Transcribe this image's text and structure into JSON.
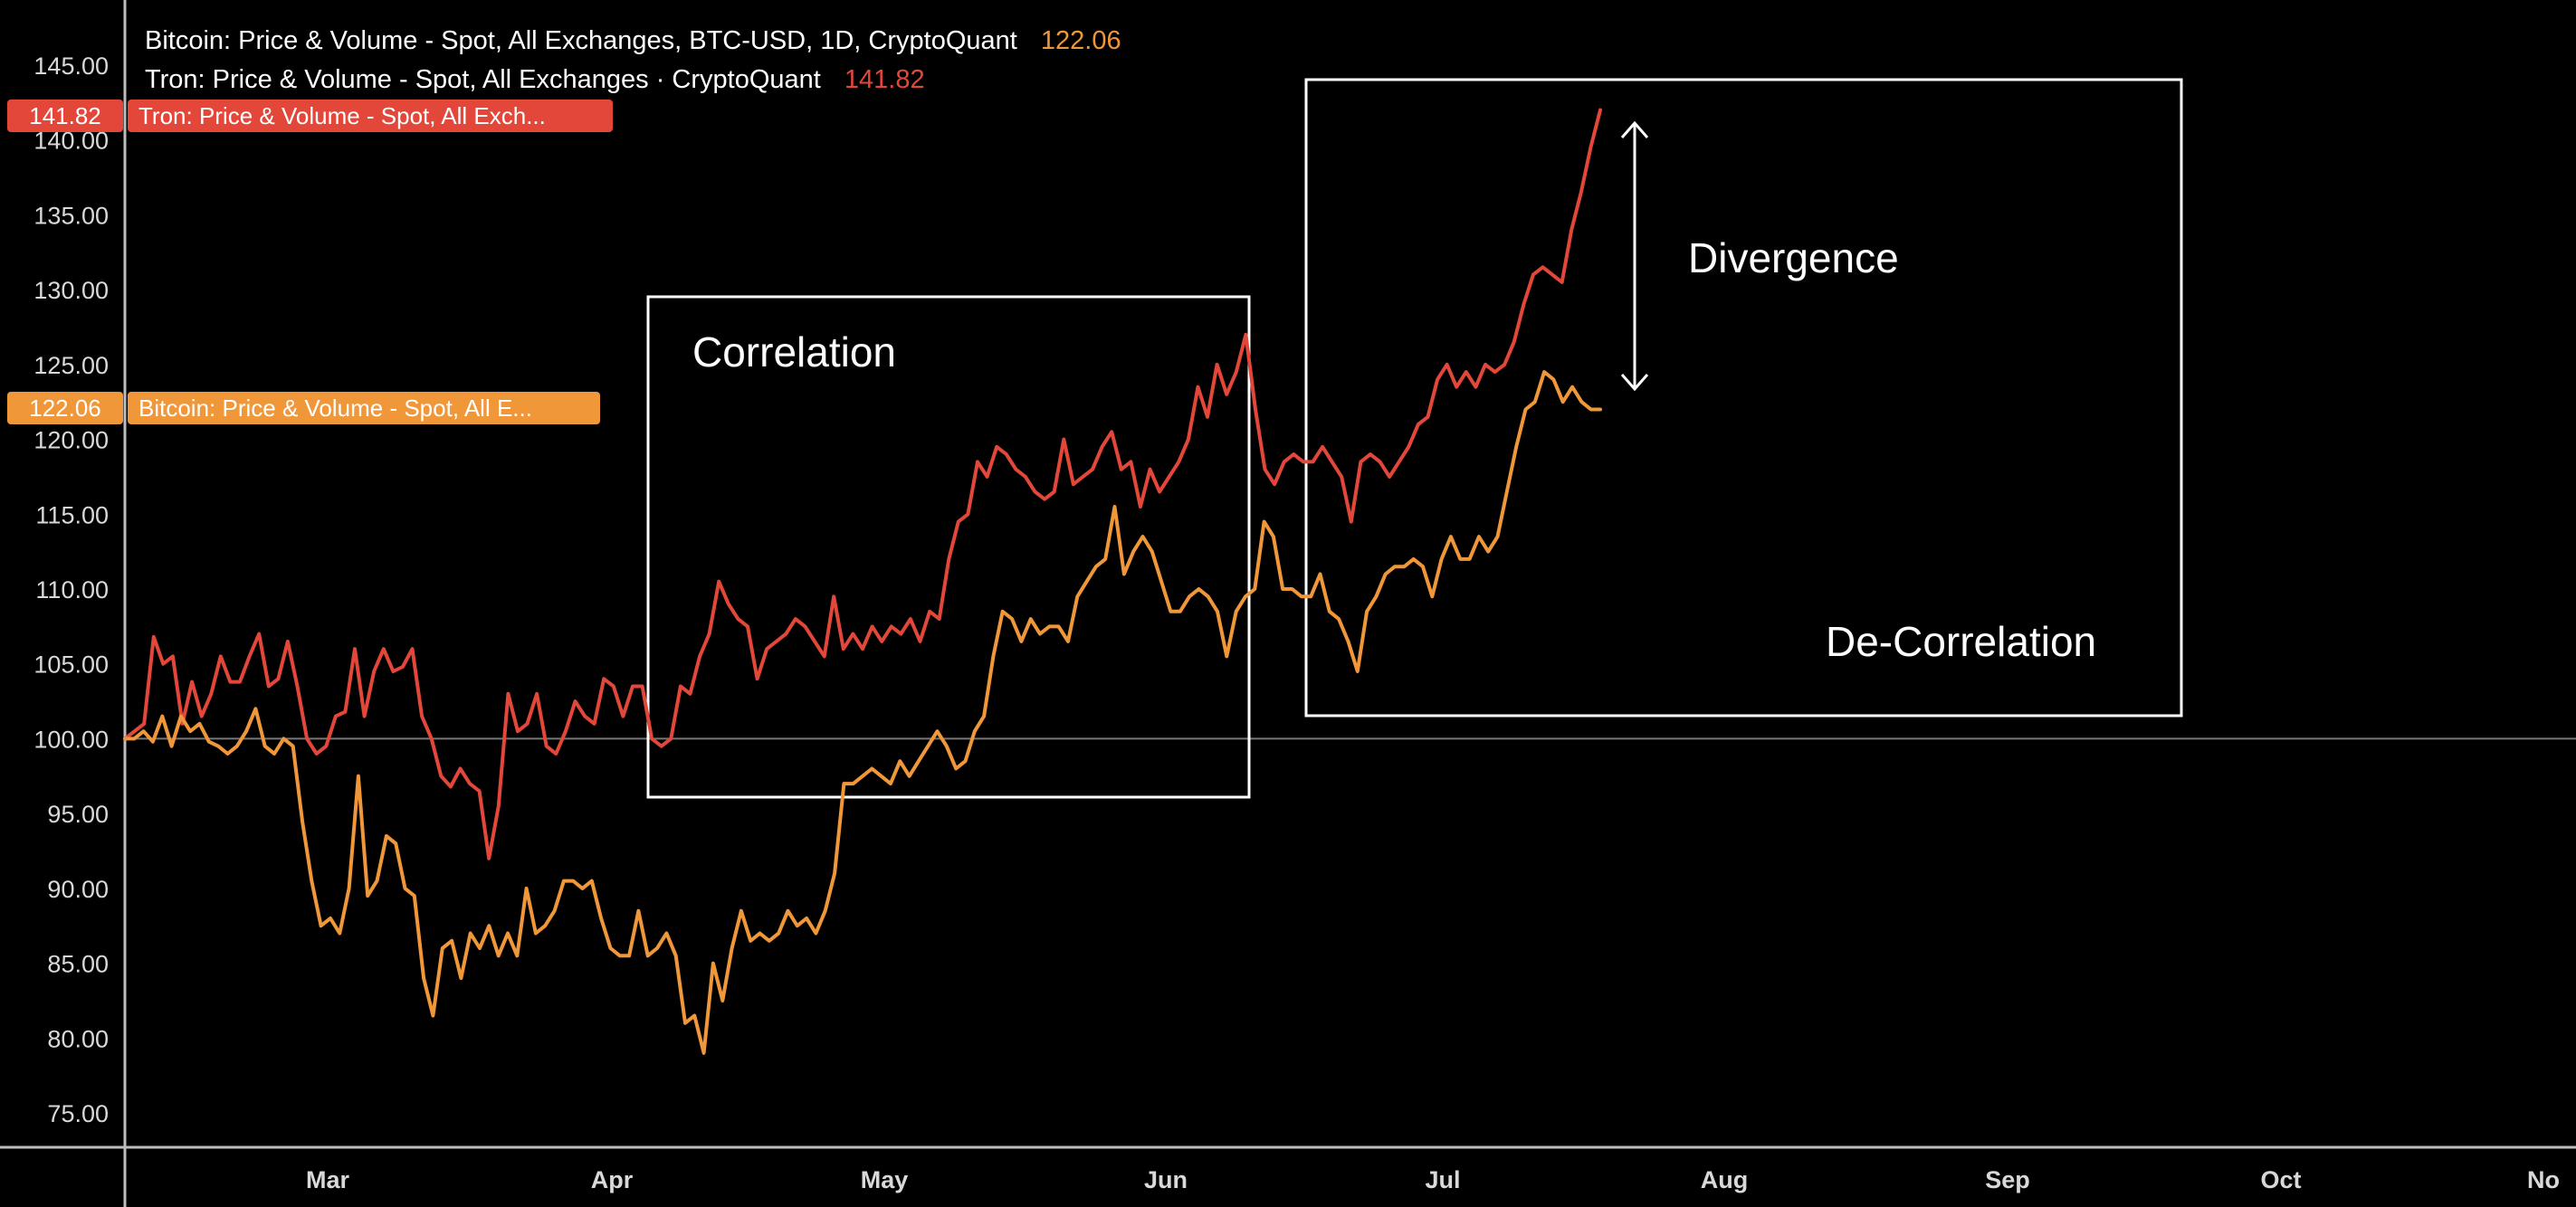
{
  "chart_data": {
    "type": "line",
    "ylim": [
      72,
      148
    ],
    "y_ticks": [
      "145.00",
      "140.00",
      "135.00",
      "130.00",
      "125.00",
      "120.00",
      "115.00",
      "110.00",
      "105.00",
      "100.00",
      "95.00",
      "90.00",
      "85.00",
      "80.00",
      "75.00"
    ],
    "x_ticks": [
      "Mar",
      "Apr",
      "May",
      "Jun",
      "Jul",
      "Aug",
      "Sep",
      "Oct",
      "No"
    ],
    "baseline": 100,
    "grid": false,
    "colors": {
      "bitcoin": "#f0973a",
      "tron": "#e2473a",
      "background": "#000000",
      "axis": "#d9d9d9",
      "annotation": "#ffffff"
    },
    "legend": {
      "bitcoin_label": "Bitcoin: Price & Volume - Spot, All Exchanges, BTC-USD, 1D, CryptoQuant",
      "bitcoin_value": "122.06",
      "tron_label": "Tron: Price & Volume - Spot, All Exchanges · CryptoQuant",
      "tron_value": "141.82"
    },
    "price_tags": {
      "tron_value": "141.82",
      "tron_label": "Tron: Price & Volume - Spot, All Exch...",
      "bitcoin_value": "122.06",
      "bitcoin_label": "Bitcoin: Price & Volume - Spot, All E..."
    },
    "annotations": {
      "correlation": "Correlation",
      "divergence": "Divergence",
      "de_correlation": "De-Correlation"
    },
    "series": [
      {
        "name": "Tron",
        "values": [
          100.0,
          100.5,
          101.0,
          106.8,
          105.0,
          105.5,
          101.0,
          103.8,
          101.5,
          103.0,
          105.5,
          103.8,
          103.8,
          105.5,
          107.0,
          103.5,
          104.0,
          106.5,
          103.5,
          100.0,
          99.0,
          99.5,
          101.5,
          101.8,
          106.0,
          101.5,
          104.5,
          106.0,
          104.5,
          104.8,
          106.0,
          101.5,
          100.0,
          97.5,
          96.8,
          98.0,
          97.0,
          96.5,
          92.0,
          95.5,
          103.0,
          100.5,
          101.0,
          103.0,
          99.5,
          99.0,
          100.5,
          102.5,
          101.5,
          101.0,
          104.0,
          103.5,
          101.5,
          103.5,
          103.5,
          100.0,
          99.5,
          100.0,
          103.5,
          103.0,
          105.5,
          107.0,
          110.5,
          109.0,
          108.0,
          107.5,
          104.0,
          106.0,
          106.5,
          107.0,
          108.0,
          107.5,
          106.5,
          105.5,
          109.5,
          106.0,
          107.0,
          106.0,
          107.5,
          106.5,
          107.5,
          107.0,
          108.0,
          106.5,
          108.5,
          108.0,
          112.0,
          114.5,
          115.0,
          118.5,
          117.5,
          119.5,
          119.0,
          118.0,
          117.5,
          116.5,
          116.0,
          116.5,
          120.0,
          117.0,
          117.5,
          118.0,
          119.5,
          120.5,
          118.0,
          118.5,
          115.5,
          118.0,
          116.5,
          117.5,
          118.5,
          120.0,
          123.5,
          121.5,
          125.0,
          123.0,
          124.5,
          127.0,
          122.0,
          118.0,
          117.0,
          118.5,
          119.0,
          118.5,
          118.5,
          119.5,
          118.5,
          117.5,
          114.5,
          118.5,
          119.0,
          118.5,
          117.5,
          118.5,
          119.5,
          121.0,
          121.5,
          124.0,
          125.0,
          123.5,
          124.5,
          123.5,
          125.0,
          124.5,
          125.0,
          126.5,
          129.0,
          131.0,
          131.5,
          131.0,
          130.5,
          134.0,
          136.5,
          139.5,
          142.0
        ]
      },
      {
        "name": "Bitcoin",
        "values": [
          100.0,
          100.0,
          100.5,
          99.8,
          101.5,
          99.5,
          101.5,
          100.5,
          101.0,
          99.8,
          99.5,
          99.0,
          99.5,
          100.5,
          102.0,
          99.5,
          99.0,
          100.0,
          99.5,
          94.5,
          90.5,
          87.5,
          88.0,
          87.0,
          90.0,
          97.5,
          89.5,
          90.5,
          93.5,
          93.0,
          90.0,
          89.5,
          84.0,
          81.5,
          86.0,
          86.5,
          84.0,
          87.0,
          86.0,
          87.5,
          85.5,
          87.0,
          85.5,
          90.0,
          87.0,
          87.5,
          88.5,
          90.5,
          90.5,
          90.0,
          90.5,
          88.0,
          86.0,
          85.5,
          85.5,
          88.5,
          85.5,
          86.0,
          87.0,
          85.5,
          81.0,
          81.5,
          79.0,
          85.0,
          82.5,
          86.0,
          88.5,
          86.5,
          87.0,
          86.5,
          87.0,
          88.5,
          87.5,
          88.0,
          87.0,
          88.5,
          91.0,
          97.0,
          97.0,
          97.5,
          98.0,
          97.5,
          97.0,
          98.5,
          97.5,
          98.5,
          99.5,
          100.5,
          99.5,
          98.0,
          98.5,
          100.5,
          101.5,
          105.5,
          108.5,
          108.0,
          106.5,
          108.0,
          107.0,
          107.5,
          107.5,
          106.5,
          109.5,
          110.5,
          111.5,
          112.0,
          115.5,
          111.0,
          112.5,
          113.5,
          112.5,
          110.5,
          108.5,
          108.5,
          109.5,
          110.0,
          109.5,
          108.5,
          105.5,
          108.5,
          109.5,
          110.0,
          114.5,
          113.5,
          110.0,
          110.0,
          109.5,
          109.5,
          111.0,
          108.5,
          108.0,
          106.5,
          104.5,
          108.5,
          109.5,
          111.0,
          111.5,
          111.5,
          112.0,
          111.5,
          109.5,
          112.0,
          113.5,
          112.0,
          112.0,
          113.5,
          112.5,
          113.5,
          116.5,
          119.5,
          122.0,
          122.5,
          124.5,
          124.0,
          122.5,
          123.5,
          122.5,
          122.0,
          122.0
        ]
      }
    ]
  }
}
